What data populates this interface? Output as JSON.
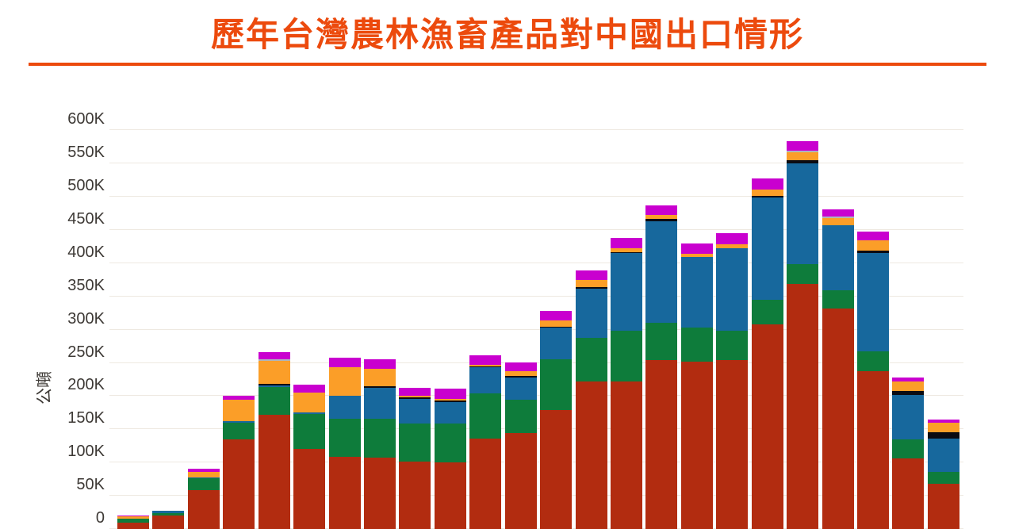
{
  "header": {
    "title": "歷年台灣農林漁畜產品對中國出口情形",
    "title_color": "#EC4A0D",
    "underline_color": "#EC4A0D"
  },
  "chart_data": {
    "type": "bar",
    "stacked": true,
    "title": "歷年台灣農林漁畜產品對中國出口情形",
    "ylabel": "公噸",
    "ylim": [
      0,
      600000
    ],
    "ytick_labels": [
      "0",
      "50K",
      "100K",
      "150K",
      "200K",
      "250K",
      "300K",
      "350K",
      "400K",
      "450K",
      "500K",
      "550K",
      "600K"
    ],
    "grid": true,
    "legend": "none",
    "x_axis_labels_visible": false,
    "bar_count": 24,
    "values_unit": "thousand metric tons (K)",
    "series": [
      {
        "name": "darkred-bottom-segment",
        "color": "#B22C10",
        "values_k": [
          10,
          20,
          58,
          135,
          172,
          120,
          109,
          108,
          101,
          100,
          136,
          144,
          179,
          222,
          222,
          254,
          252,
          254,
          308,
          369,
          332,
          237,
          106,
          68
        ]
      },
      {
        "name": "green-segment",
        "color": "#0E7C3B",
        "values_k": [
          5,
          4,
          18,
          25,
          42,
          53,
          57,
          58,
          58,
          59,
          68,
          51,
          76,
          66,
          76,
          56,
          51,
          44,
          37,
          29,
          27,
          30,
          29,
          18
        ]
      },
      {
        "name": "blue-segment",
        "color": "#17689D",
        "values_k": [
          0,
          3,
          2,
          2,
          2,
          2,
          35,
          47,
          37,
          32,
          39,
          33,
          48,
          74,
          117,
          153,
          106,
          125,
          154,
          152,
          98,
          148,
          67,
          50
        ]
      },
      {
        "name": "black-segment",
        "color": "#0B0B12",
        "values_k": [
          0,
          0,
          0,
          0,
          2,
          1,
          0,
          2,
          2,
          2,
          2,
          2,
          1,
          2,
          2,
          4,
          0,
          0,
          2,
          5,
          0,
          4,
          6,
          10
        ]
      },
      {
        "name": "orange-segment",
        "color": "#FB9E28",
        "values_k": [
          4,
          0,
          8,
          32,
          35,
          29,
          42,
          26,
          2,
          3,
          2,
          7,
          10,
          11,
          6,
          6,
          5,
          6,
          10,
          12,
          11,
          16,
          14,
          14
        ]
      },
      {
        "name": "gray-segment",
        "color": "#AEB6BC",
        "values_k": [
          0,
          1,
          0,
          0,
          2,
          0,
          0,
          0,
          0,
          0,
          0,
          0,
          0,
          0,
          0,
          0,
          0,
          0,
          0,
          2,
          2,
          0,
          0,
          0
        ]
      },
      {
        "name": "magenta-top-segment",
        "color": "#C900CF",
        "values_k": [
          1,
          0,
          5,
          7,
          11,
          12,
          15,
          14,
          12,
          15,
          14,
          14,
          14,
          14,
          15,
          14,
          16,
          16,
          16,
          14,
          11,
          12,
          6,
          5
        ]
      }
    ],
    "colors": {
      "gridline": "#EEE9E1",
      "tick_text": "#3D3935"
    }
  }
}
